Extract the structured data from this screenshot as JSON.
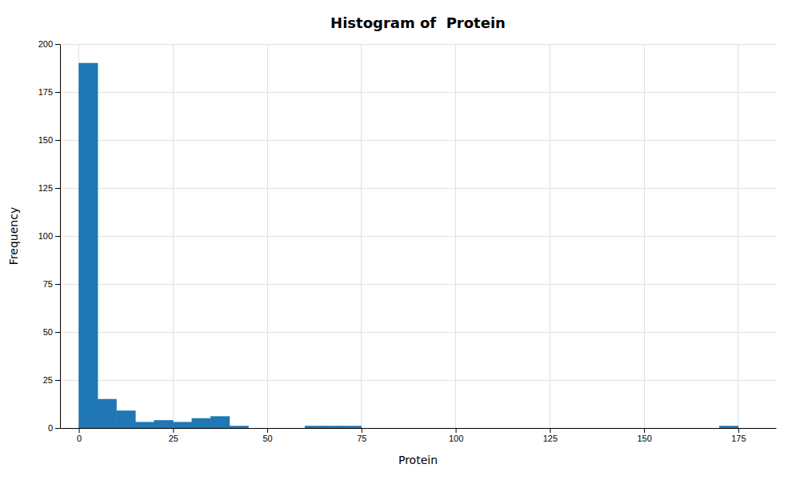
{
  "chart_data": {
    "type": "histogram",
    "title": "Histogram of  Protein",
    "x_label": "Protein",
    "y_label": "Frequency",
    "bins": [
      0,
      5,
      10,
      15,
      20,
      25,
      30,
      35,
      40,
      45,
      50,
      55,
      60,
      65,
      70,
      75,
      80,
      85,
      90,
      95,
      100,
      105,
      110,
      115,
      120,
      125,
      130,
      135,
      140,
      145,
      150,
      155,
      160,
      165,
      170,
      175,
      180
    ],
    "values": [
      190,
      15,
      9,
      3,
      4,
      3,
      5,
      6,
      1,
      0,
      0,
      0,
      1,
      1,
      1,
      0,
      0,
      0,
      0,
      0,
      0,
      0,
      0,
      0,
      0,
      0,
      0,
      0,
      0,
      0,
      0,
      0,
      0,
      0,
      1,
      0
    ],
    "color": "#1f77b4",
    "xlim": [
      -5,
      185
    ],
    "ylim": [
      0,
      200
    ],
    "xticks": [
      0,
      25,
      50,
      75,
      100,
      125,
      150,
      175
    ],
    "yticks": [
      0,
      25,
      50,
      75,
      100,
      125,
      150,
      175,
      200
    ],
    "grid": true
  }
}
